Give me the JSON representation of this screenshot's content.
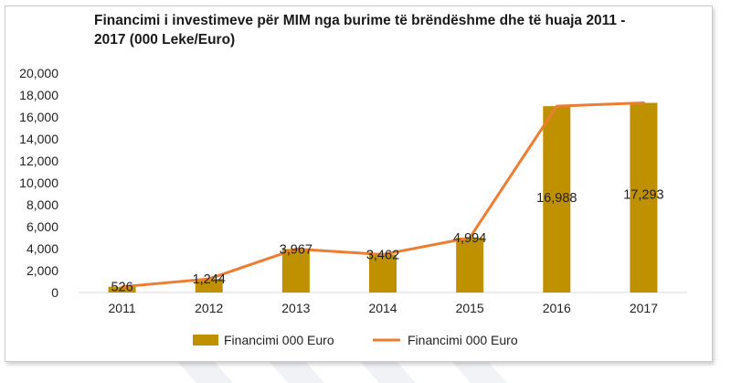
{
  "chart_data": {
    "type": "bar",
    "title": "Financimi i investimeve për MIM nga burime të brëndëshme dhe të huaja 2011 - 2017 (000 Leke/Euro)",
    "categories": [
      "2011",
      "2012",
      "2013",
      "2014",
      "2015",
      "2016",
      "2017"
    ],
    "series": [
      {
        "name": "Financimi 000 Euro",
        "type": "bar",
        "color": "#bf9000",
        "values": [
          526,
          1244,
          3967,
          3462,
          4994,
          16988,
          17293
        ]
      },
      {
        "name": "Financimi 000 Euro",
        "type": "line",
        "color": "#ed7d31",
        "values": [
          526,
          1244,
          3967,
          3462,
          4994,
          16988,
          17293
        ]
      }
    ],
    "data_labels": [
      "526",
      "1,244",
      "3,967",
      "3,462",
      "4,994",
      "16,988",
      "17,293"
    ],
    "y_ticks": [
      "0",
      "2,000",
      "4,000",
      "6,000",
      "8,000",
      "10,000",
      "12,000",
      "14,000",
      "16,000",
      "18,000",
      "20,000"
    ],
    "ylim": [
      0,
      20000
    ],
    "xlabel": "",
    "ylabel": "",
    "grid": false,
    "legend_position": "bottom"
  }
}
